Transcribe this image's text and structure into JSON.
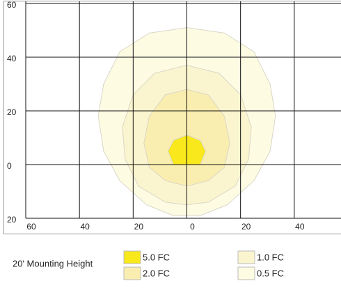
{
  "chart_data": {
    "type": "contour",
    "legend_title": "20' Mounting Height",
    "xlim": [
      -60,
      60
    ],
    "ylim": [
      -20,
      60
    ],
    "xticks": [
      {
        "value": -60,
        "label": "60"
      },
      {
        "value": -40,
        "label": "40"
      },
      {
        "value": -20,
        "label": "20"
      },
      0,
      20,
      40,
      60
    ],
    "yticks": [
      60,
      40,
      20,
      0,
      {
        "value": -20,
        "label": "20"
      }
    ],
    "grid": true,
    "series": [
      {
        "name": "0.5 FC",
        "color": "#fdfbe2",
        "x": [
          0,
          14,
          25,
          31,
          33,
          31,
          25,
          15,
          5,
          -5,
          -15,
          -25,
          -31,
          -33,
          -31,
          -25,
          -14
        ],
        "y": [
          51,
          49,
          42,
          30,
          18,
          5,
          -6,
          -15,
          -19,
          -19,
          -15,
          -6,
          5,
          18,
          30,
          42,
          49
        ]
      },
      {
        "name": "1.0 FC",
        "color": "#fbf5cf",
        "x": [
          0,
          12,
          20,
          24,
          23,
          18,
          8,
          0,
          -8,
          -18,
          -23,
          -24,
          -20,
          -12
        ],
        "y": [
          37,
          34,
          26,
          14,
          2,
          -8,
          -14,
          -15,
          -14,
          -8,
          2,
          14,
          26,
          34
        ]
      },
      {
        "name": "2.0 FC",
        "color": "#f9eeaf",
        "x": [
          0,
          8,
          14,
          16,
          14,
          8,
          0,
          -8,
          -14,
          -16,
          -14,
          -8
        ],
        "y": [
          28,
          26,
          18,
          8,
          -1,
          -6,
          -8,
          -6,
          -1,
          8,
          18,
          26
        ]
      },
      {
        "name": "5.0 FC",
        "color": "#f8e81c",
        "x": [
          0,
          5,
          7,
          5,
          -5,
          -7,
          -5
        ],
        "y": [
          11,
          9,
          5,
          0,
          0,
          5,
          9
        ]
      }
    ]
  }
}
